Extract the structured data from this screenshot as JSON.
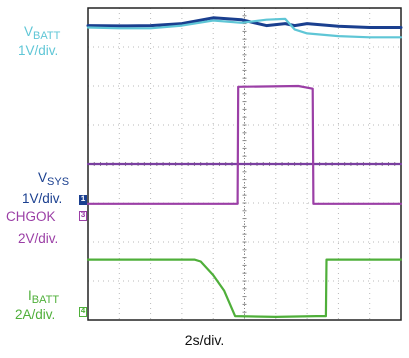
{
  "chart_data": {
    "type": "line",
    "instrument": "oscilloscope",
    "grid": {
      "x_divisions": 10,
      "y_divisions": 8
    },
    "xlabel": "2s/div.",
    "time_per_div_s": 2,
    "series": [
      {
        "key": "vbatt1",
        "name": "VBATT",
        "label_main": "V",
        "label_sub": "BATT",
        "scale": "1V/div.",
        "color": "#1a3f8f",
        "x_div": [
          0,
          1,
          2,
          3,
          4,
          4.9,
          5.7,
          6.3,
          6.6,
          7.0,
          8.0,
          9.0,
          10.0
        ],
        "y_div": [
          7.55,
          7.54,
          7.55,
          7.6,
          7.75,
          7.7,
          7.55,
          7.6,
          7.55,
          7.6,
          7.53,
          7.5,
          7.5
        ]
      },
      {
        "key": "vbatt2",
        "name": "",
        "color": "#5fc6d6",
        "x_div": [
          0,
          1,
          2,
          3,
          4,
          4.9,
          5.7,
          6.3,
          6.6,
          7.0,
          8.0,
          9.0,
          10.0
        ],
        "y_div": [
          7.5,
          7.48,
          7.48,
          7.55,
          7.68,
          7.62,
          7.7,
          7.72,
          7.45,
          7.35,
          7.28,
          7.25,
          7.25
        ]
      },
      {
        "key": "vsys",
        "name": "VSYS",
        "label_main": "V",
        "label_sub": "SYS",
        "scale": "1V/div.",
        "color": "#7a3fa0",
        "x_div": [
          0,
          4.8,
          4.8,
          7.3,
          7.3,
          10.0
        ],
        "y_div": [
          4.0,
          4.0,
          4.0,
          4.0,
          4.0,
          4.0
        ]
      },
      {
        "key": "chgok",
        "name": "CHGOK",
        "scale": "2V/div.",
        "color": "#9b3fa6",
        "x_div": [
          0,
          4.78,
          4.8,
          6.72,
          7.18,
          7.2,
          10.0
        ],
        "y_div": [
          2.98,
          2.98,
          5.98,
          6.0,
          5.93,
          2.98,
          2.98
        ]
      },
      {
        "key": "ibatt",
        "name": "IBATT",
        "label_main": "I",
        "label_sub": "BATT",
        "scale": "2A/div.",
        "color": "#4faf3a",
        "x_div": [
          0,
          3.4,
          3.6,
          4.0,
          4.35,
          4.7,
          6.0,
          7.3,
          7.6,
          7.62,
          10.0
        ],
        "y_div": [
          1.55,
          1.55,
          1.5,
          1.15,
          0.75,
          0.1,
          0.08,
          0.1,
          0.1,
          1.55,
          1.55
        ]
      }
    ]
  },
  "markers": {
    "ch1": "1",
    "ch3": "3",
    "ch4": "4"
  },
  "colors": {
    "grid_border": "#222222",
    "grid_dots": "#b9b9b9",
    "center_axis": "#8a8a8a",
    "vbatt_label": "#5fc6d6",
    "vsys_label": "#1a3f8f",
    "chgok_label": "#9b3fa6",
    "ibatt_label": "#4faf3a"
  }
}
